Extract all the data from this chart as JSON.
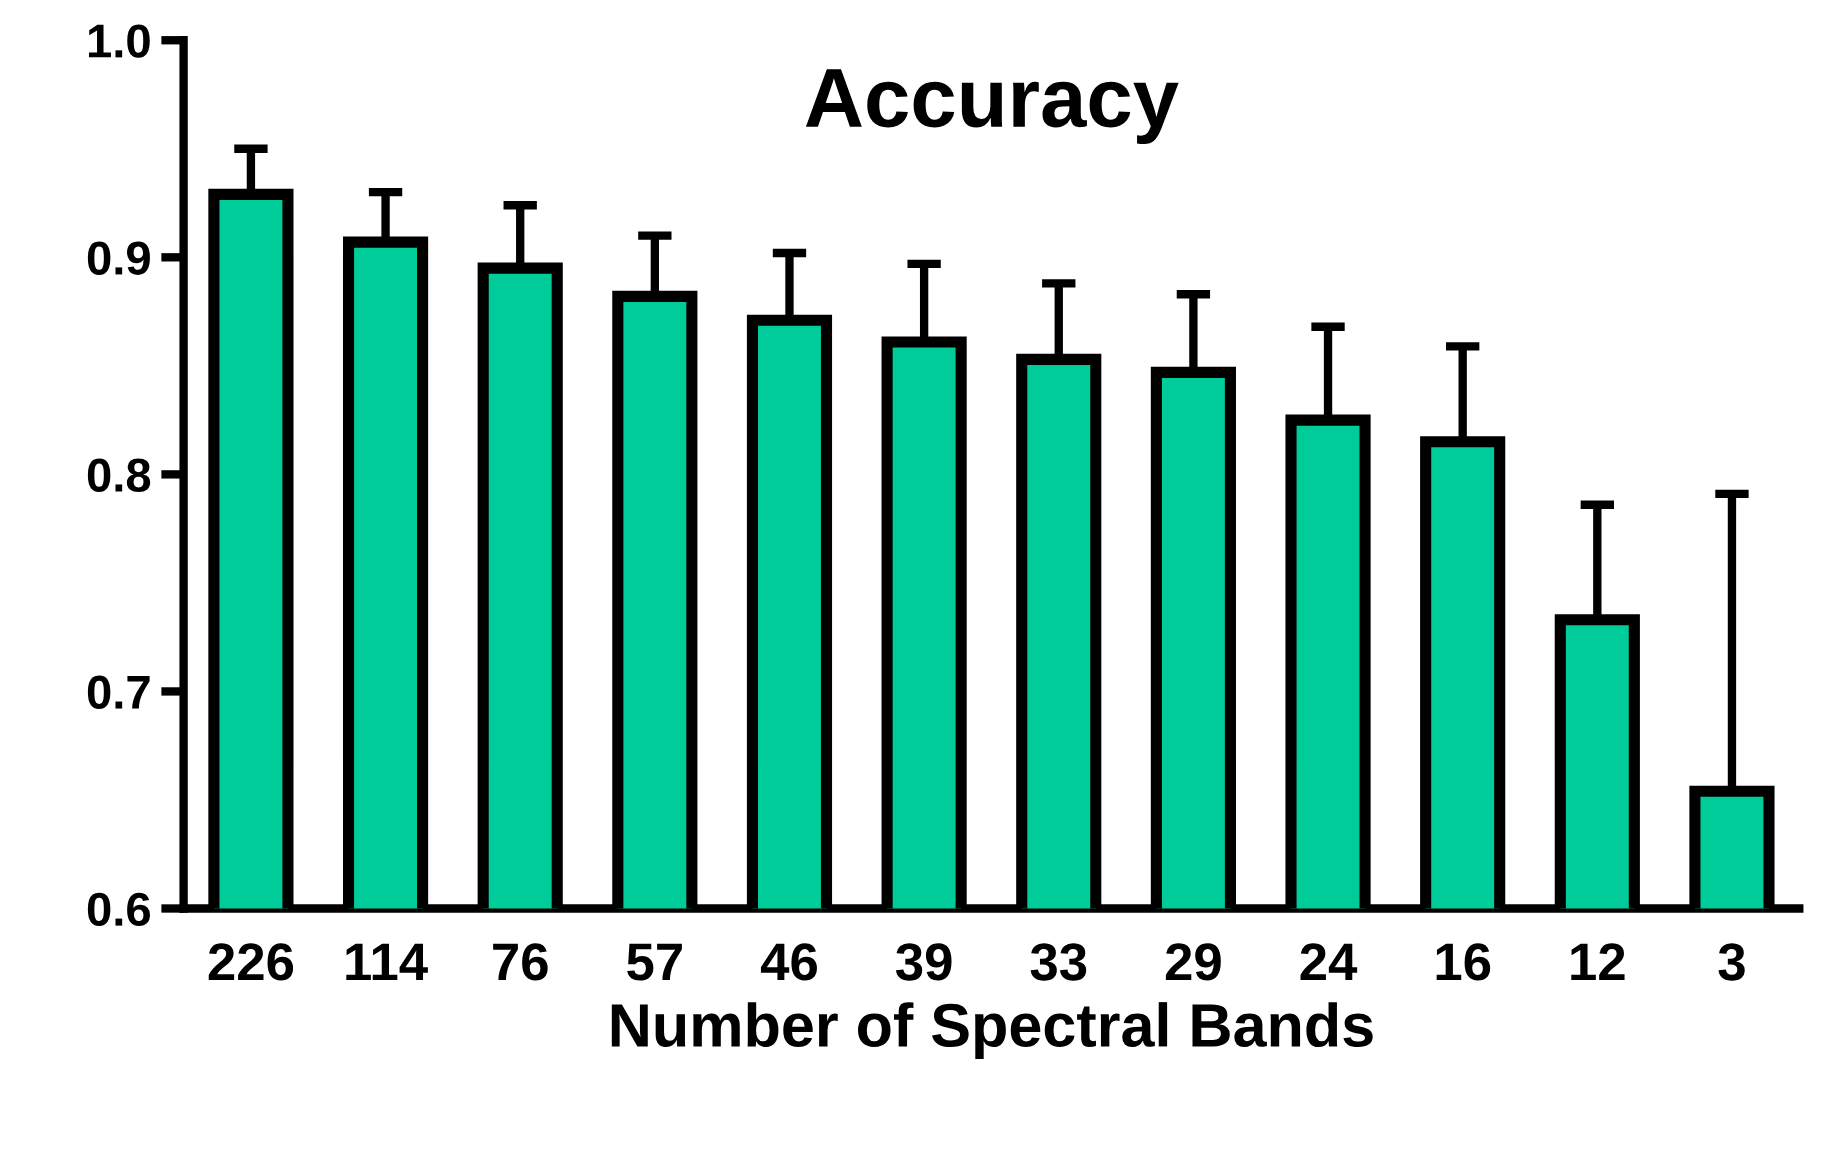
{
  "chart_data": {
    "type": "bar",
    "title": "Accuracy",
    "xlabel": "Number of Spectral Bands",
    "categories": [
      "226",
      "114",
      "76",
      "57",
      "46",
      "39",
      "33",
      "29",
      "24",
      "16",
      "12",
      "3"
    ],
    "values": [
      0.929,
      0.907,
      0.895,
      0.882,
      0.871,
      0.861,
      0.853,
      0.847,
      0.825,
      0.815,
      0.733,
      0.654
    ],
    "errors": [
      [
        0.929,
        0.95
      ],
      [
        0.907,
        0.93
      ],
      [
        0.895,
        0.924
      ],
      [
        0.882,
        0.91
      ],
      [
        0.871,
        0.902
      ],
      [
        0.861,
        0.897
      ],
      [
        0.853,
        0.888
      ],
      [
        0.847,
        0.883
      ],
      [
        0.825,
        0.868
      ],
      [
        0.815,
        0.859
      ],
      [
        0.733,
        0.786
      ],
      [
        0.654,
        0.791
      ]
    ],
    "color": "#00cc99",
    "ylim": [
      0.6,
      1.0
    ],
    "yticks": [
      0.6,
      0.7,
      0.8,
      0.9,
      {
        "value": 1,
        "label": "1.0"
      }
    ],
    "grid": false,
    "legend": false
  }
}
